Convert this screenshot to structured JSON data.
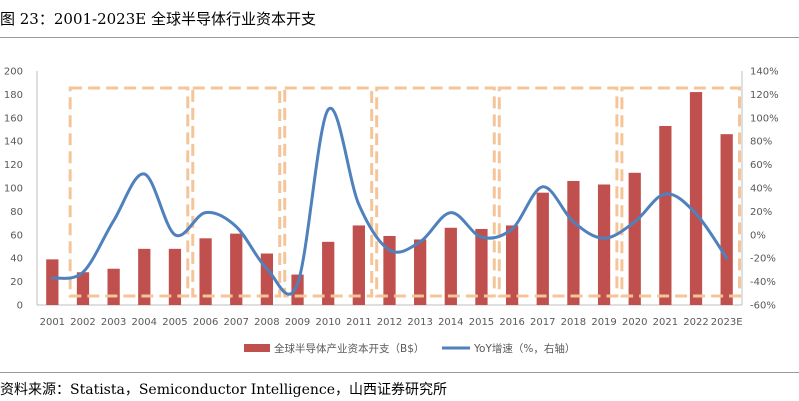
{
  "figure": {
    "title": "图 23：2001-2023E 全球半导体行业资本开支",
    "source": "资料来源：Statista，Semiconductor Intelligence，山西证券研究所"
  },
  "colors": {
    "bar": "#c0504d",
    "line": "#4f81bd",
    "dashed_box": "#f5c59a",
    "axis_text": "#595959",
    "axis_line": "#bfbfbf"
  },
  "chart_data": {
    "type": "bar",
    "title": "",
    "categories": [
      "2001",
      "2002",
      "2003",
      "2004",
      "2005",
      "2006",
      "2007",
      "2008",
      "2009",
      "2010",
      "2011",
      "2012",
      "2013",
      "2014",
      "2015",
      "2016",
      "2017",
      "2018",
      "2019",
      "2020",
      "2021",
      "2022",
      "2023E"
    ],
    "series": [
      {
        "name": "全球半导体产业资本开支（B$）",
        "type": "bar",
        "axis": "left",
        "values": [
          39,
          28,
          31,
          48,
          48,
          57,
          61,
          44,
          26,
          54,
          68,
          59,
          56,
          66,
          65,
          68,
          96,
          106,
          103,
          113,
          153,
          182,
          146
        ]
      },
      {
        "name": "YoY增速（%，右轴）",
        "type": "line",
        "axis": "right",
        "values": [
          -37,
          -32,
          12,
          52,
          0,
          19,
          7,
          -29,
          -42,
          107,
          26,
          -13,
          -6,
          19,
          -2,
          5,
          41,
          11,
          -3,
          11,
          35,
          18,
          -20
        ]
      }
    ],
    "y_left": {
      "min": 0,
      "max": 200,
      "step": 20,
      "ticks": [
        "0",
        "20",
        "40",
        "60",
        "80",
        "100",
        "120",
        "140",
        "160",
        "180",
        "200"
      ]
    },
    "y_right": {
      "min": -60,
      "max": 140,
      "step": 20,
      "ticks": [
        "-60%",
        "-40%",
        "-20%",
        "0%",
        "20%",
        "40%",
        "60%",
        "80%",
        "100%",
        "120%",
        "140%"
      ]
    },
    "annotations": [
      {
        "type": "dashed-box",
        "from": "2002",
        "to": "2005"
      },
      {
        "type": "dashed-box",
        "from": "2006",
        "to": "2008"
      },
      {
        "type": "dashed-box",
        "from": "2009",
        "to": "2011"
      },
      {
        "type": "dashed-box",
        "from": "2012",
        "to": "2015"
      },
      {
        "type": "dashed-box",
        "from": "2016",
        "to": "2019"
      },
      {
        "type": "dashed-box",
        "from": "2020",
        "to": "2023E"
      }
    ],
    "legend_position": "bottom-center",
    "grid": false
  }
}
